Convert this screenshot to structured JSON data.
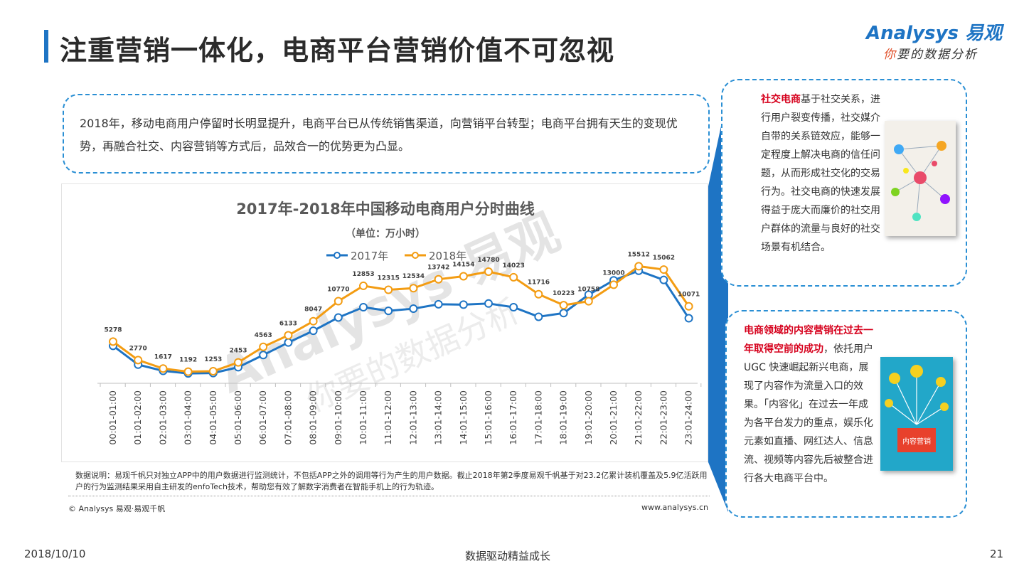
{
  "header": {
    "title": "注重营销一体化，电商平台营销价值不可忽视",
    "logo_main": "Analysys 易观",
    "logo_sub_accent": "你",
    "logo_sub_rest": "要的数据分析"
  },
  "intro": {
    "text": "2018年，移动电商用户停留时长明显提升，电商平台已从传统销售渠道，向营销平台转型；电商平台拥有天生的变现优势，再融合社交、内容营销等方式后，品效合一的优势更为凸显。"
  },
  "chart_data": {
    "type": "line",
    "title": "2017年-2018年中国移动电商用户分时曲线",
    "subtitle": "（单位：万小时）",
    "categories": [
      "00:01-01:00",
      "01:01-02:00",
      "02:01-03:00",
      "03:01-04:00",
      "04:01-05:00",
      "05:01-06:00",
      "06:01-07:00",
      "07:01-08:00",
      "08:01-09:00",
      "09:01-10:00",
      "10:01-11:00",
      "11:01-12:00",
      "12:01-13:00",
      "13:01-14:00",
      "14:01-15:00",
      "15:01-16:00",
      "16:01-17:00",
      "17:01-18:00",
      "18:01-19:00",
      "19:01-20:00",
      "20:01-21:00",
      "21:01-22:00",
      "22:01-23:00",
      "23:01-24:00"
    ],
    "series": [
      {
        "name": "2017年",
        "color": "#1e74c4",
        "labeled": false,
        "values": [
          4700,
          2150,
          1300,
          950,
          1000,
          1800,
          3450,
          5150,
          6750,
          8550,
          9950,
          9450,
          9750,
          10350,
          10300,
          10450,
          9950,
          8650,
          9150,
          11650,
          13600,
          14900,
          13650,
          8450
        ]
      },
      {
        "name": "2018年",
        "color": "#f39c12",
        "labeled": true,
        "values": [
          5278,
          2770,
          1617,
          1192,
          1253,
          2453,
          4563,
          6133,
          8047,
          10770,
          12853,
          12315,
          12534,
          13742,
          14154,
          14780,
          14023,
          11716,
          10223,
          10758,
          13000,
          15512,
          15062,
          10071
        ]
      }
    ],
    "ylim": [
      0,
      17000
    ],
    "legend": "top",
    "grid": false,
    "watermark": "Analysys 易观 你要的数据分析"
  },
  "note": {
    "text": "数据说明：易观千帆只对独立APP中的用户数据进行监测统计，不包括APP之外的调用等行为产生的用户数据。截止2018年第2季度易观千帆基于对23.2亿累计装机覆盖及5.9亿活跃用户的行为监测结果采用自主研发的enfoTech技术，帮助您有效了解数字消费者在智能手机上的行为轨迹。",
    "copyright": "© Analysys 易观·易观千帆",
    "website": "www.analysys.cn"
  },
  "side1": {
    "highlight": "社交电商",
    "text": "基于社交关系，进行用户裂变传播，社交媒介自带的关系链效应，能够一定程度上解决电商的信任问题，从而形成社交化的交易行为。社交电商的快速发展得益于庞大而廉价的社交用户群体的流量与良好的社交场景有机结合。"
  },
  "side2": {
    "highlight": "电商领域的内容营销在过去一年取得空前的成功",
    "text": "，依托用户 UGC 快速崛起新兴电商，展现了内容作为流量入口的效果。「内容化」在过去一年成为各平台发力的重点，娱乐化元素如直播、网红达人、信息流、视频等内容先后被整合进行各大电商平台中。",
    "image_label": "内容营销"
  },
  "footer": {
    "date": "2018/10/10",
    "center": "数据驱动精益成长",
    "page": "21"
  }
}
